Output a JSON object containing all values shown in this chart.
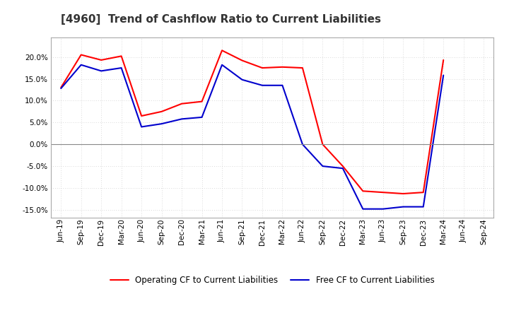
{
  "title": "[4960]  Trend of Cashflow Ratio to Current Liabilities",
  "x_labels": [
    "Jun-19",
    "Sep-19",
    "Dec-19",
    "Mar-20",
    "Jun-20",
    "Sep-20",
    "Dec-20",
    "Mar-21",
    "Jun-21",
    "Sep-21",
    "Dec-21",
    "Mar-22",
    "Jun-22",
    "Sep-22",
    "Dec-22",
    "Mar-23",
    "Jun-23",
    "Sep-23",
    "Dec-23",
    "Mar-24",
    "Jun-24",
    "Sep-24"
  ],
  "op_cf": [
    0.13,
    0.205,
    0.193,
    0.202,
    0.065,
    0.075,
    0.093,
    0.098,
    0.215,
    0.192,
    0.175,
    0.177,
    0.175,
    0.0,
    -0.05,
    -0.107,
    -0.11,
    -0.113,
    -0.11,
    0.193,
    null,
    null
  ],
  "free_cf": [
    0.128,
    0.182,
    0.168,
    0.175,
    0.04,
    0.047,
    0.058,
    0.062,
    0.182,
    0.148,
    0.135,
    0.135,
    0.0,
    -0.05,
    -0.055,
    -0.148,
    -0.148,
    -0.143,
    -0.143,
    0.158,
    null,
    null
  ],
  "operating_color": "#FF0000",
  "free_color": "#0000CD",
  "ylim": [
    -0.168,
    0.245
  ],
  "yticks": [
    -0.15,
    -0.1,
    -0.05,
    0.0,
    0.05,
    0.1,
    0.15,
    0.2
  ],
  "background_color": "#FFFFFF",
  "plot_bg_color": "#FFFFFF",
  "grid_color": "#BBBBBB",
  "legend_op": "Operating CF to Current Liabilities",
  "legend_free": "Free CF to Current Liabilities",
  "title_fontsize": 11,
  "tick_fontsize": 7.5,
  "legend_fontsize": 8.5,
  "line_width": 1.5
}
